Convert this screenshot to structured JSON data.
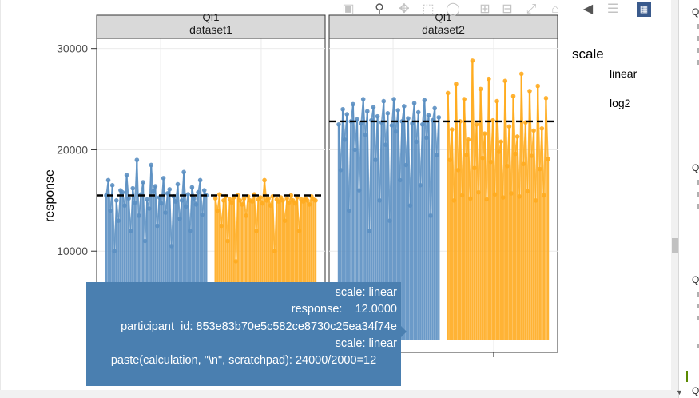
{
  "modebar": {
    "icons": [
      "camera-icon",
      "zoom-icon",
      "pan-icon",
      "box-select-icon",
      "lasso-icon",
      "zoom-in-icon",
      "zoom-out-icon",
      "autoscale-icon",
      "home-icon",
      "hover-closest-icon",
      "hover-compare-icon",
      "plotly-logo-icon"
    ]
  },
  "legend": {
    "title": "scale",
    "items": [
      "linear",
      "log2"
    ]
  },
  "right_panel": {
    "fragments": [
      "Q",
      "Q",
      "Q",
      "Q"
    ]
  },
  "tooltip": {
    "lines": [
      "scale: linear",
      "response:    12.0000",
      "participant_id: 853e83b70e5c582ce8730c25ea34f74e",
      "scale: linear",
      "paste(calculation, \"\\n\", scratchpad): 24000/2000=12"
    ]
  },
  "colors": {
    "linear": "#5b8fc2",
    "log2": "#ffab1f",
    "strip_bg": "#d9d9d9",
    "grid": "#ebebeb",
    "tooltip_bg": "#4a7fb0"
  },
  "chart_data": {
    "type": "scatter",
    "title": "",
    "ylabel": "response",
    "ylim": [
      0,
      31000
    ],
    "yticks": [
      10000,
      20000,
      30000
    ],
    "ytick_labels": [
      "10000",
      "20000",
      "30000"
    ],
    "grid": true,
    "legend_placement": "right",
    "facets": [
      {
        "strip_top": "QI1",
        "strip_bottom": "dataset1",
        "reference_line": 15500,
        "series": [
          {
            "name": "linear",
            "values": [
              15500,
              17000,
              14000,
              16500,
              10000,
              15000,
              13000,
              16000,
              15800,
              14500,
              17500,
              15200,
              12000,
              16200,
              14800,
              19000,
              13500,
              15600,
              16800,
              11000,
              15100,
              14200,
              18500,
              15900,
              16400,
              12500,
              15300,
              14700,
              17200,
              13800,
              15700,
              16100,
              10500,
              15400,
              14900,
              16600,
              13200,
              15000,
              17800,
              14400,
              15600,
              12000,
              16300,
              15200,
              14600,
              15800,
              17000,
              13600,
              16000,
              15500
            ]
          },
          {
            "name": "log2",
            "values": [
              15200,
              14000,
              15600,
              12500,
              15000,
              15400,
              11000,
              15100,
              14800,
              15300,
              9000,
              15500,
              15000,
              14600,
              15200,
              13500,
              15400,
              15000,
              14900,
              15600,
              12000,
              15100,
              15300,
              14700,
              17000,
              15000,
              15200,
              14500,
              15400,
              10000,
              15100,
              14900,
              15300,
              15000,
              13000,
              15200,
              14800,
              15500,
              15000,
              14700,
              15300,
              12000,
              15100,
              14900,
              15200,
              15000,
              14600,
              15400,
              15100,
              15000
            ]
          }
        ]
      },
      {
        "strip_top": "QI1",
        "strip_bottom": "dataset2",
        "reference_line": 22800,
        "series": [
          {
            "name": "linear",
            "values": [
              22500,
              18000,
              24000,
              21000,
              23500,
              14000,
              22800,
              24500,
              20000,
              23000,
              16000,
              22600,
              25000,
              21500,
              23800,
              12000,
              22900,
              24200,
              19000,
              23300,
              15000,
              22700,
              24800,
              20500,
              23600,
              13000,
              22400,
              25000,
              21800,
              23900,
              17000,
              22800,
              24300,
              18500,
              23100,
              14500,
              22600,
              24600,
              20800,
              23700,
              16500,
              22500,
              24900,
              21200,
              23400,
              13500,
              22900,
              24100,
              19500,
              23200
            ]
          },
          {
            "name": "log2",
            "values": [
              25600,
              19000,
              22000,
              15000,
              26500,
              18000,
              22800,
              15500,
              25000,
              19500,
              21000,
              15200,
              28800,
              18200,
              22500,
              15800,
              26000,
              19200,
              21600,
              15100,
              27000,
              18800,
              22900,
              15600,
              24800,
              19800,
              20800,
              15300,
              26800,
              18400,
              22300,
              15700,
              25300,
              19600,
              21300,
              15400,
              27500,
              18600,
              22700,
              15900,
              25800,
              19400,
              21900,
              15000,
              26300,
              18100,
              22100,
              15500,
              25100,
              19100
            ]
          }
        ]
      }
    ]
  }
}
